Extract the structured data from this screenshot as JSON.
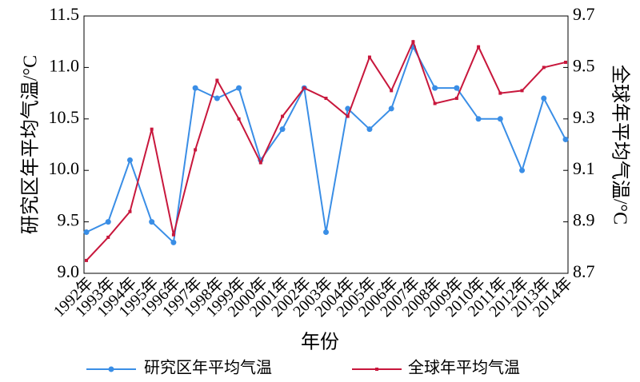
{
  "chart_data": {
    "type": "line",
    "y_label": "研究区年平均气温/°C",
    "y2_label": "全球年平均气温/°C",
    "x_label": "年份",
    "categories": [
      "1992年",
      "1993年",
      "1994年",
      "1995年",
      "1996年",
      "1997年",
      "1998年",
      "1999年",
      "2000年",
      "2001年",
      "2002年",
      "2003年",
      "2004年",
      "2005年",
      "2006年",
      "2007年",
      "2008年",
      "2009年",
      "2010年",
      "2011年",
      "2012年",
      "2013年",
      "2014年"
    ],
    "series": [
      {
        "name": "研究区年平均气温",
        "color": "#3a8ee6",
        "axis": "y",
        "values": [
          9.4,
          9.5,
          10.1,
          9.5,
          9.3,
          10.8,
          10.7,
          10.8,
          10.1,
          10.4,
          10.8,
          9.4,
          10.6,
          10.4,
          10.6,
          11.2,
          10.8,
          10.8,
          10.5,
          10.5,
          10.0,
          10.7,
          10.3
        ]
      },
      {
        "name": "全球年平均气温",
        "color": "#c8173c",
        "axis": "y2",
        "values": [
          8.75,
          8.84,
          8.94,
          9.26,
          8.85,
          9.18,
          9.45,
          9.3,
          9.13,
          9.31,
          9.42,
          9.38,
          9.31,
          9.54,
          9.41,
          9.6,
          9.36,
          9.38,
          9.58,
          9.4,
          9.41,
          9.5,
          9.52
        ]
      }
    ],
    "ylim": [
      9.0,
      11.5
    ],
    "yticks": [
      {
        "value": 9,
        "label": "9.0"
      },
      9.5,
      {
        "value": 10,
        "label": "10.0"
      },
      10.5,
      {
        "value": 11,
        "label": "11.0"
      },
      11.5
    ],
    "y2lim": [
      8.7,
      9.7
    ],
    "y2ticks": [
      8.7,
      8.9,
      9.1,
      9.3,
      9.5,
      9.7
    ],
    "legend": "bottom"
  }
}
